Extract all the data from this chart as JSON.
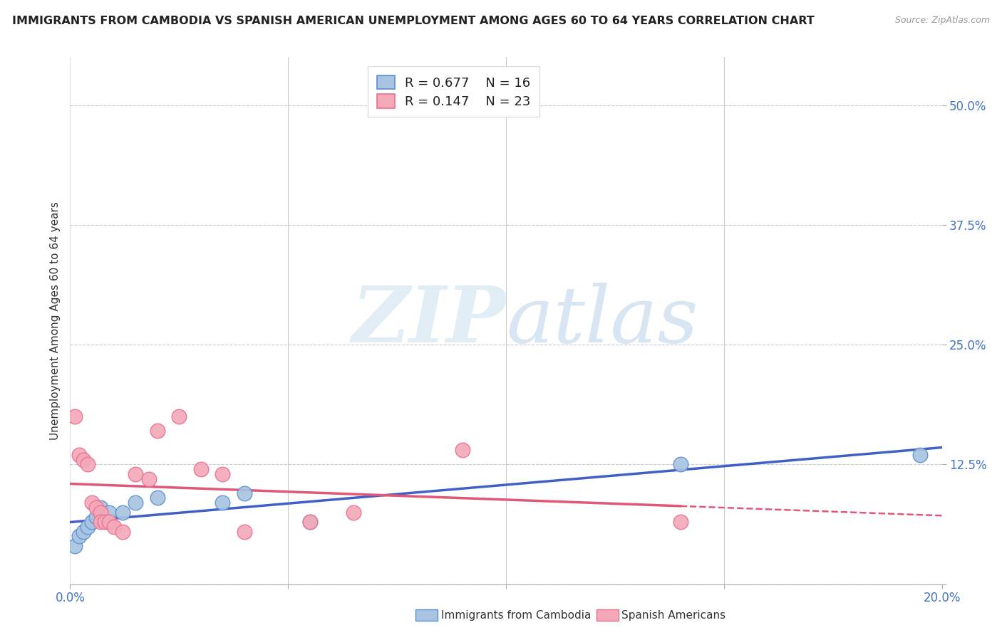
{
  "title": "IMMIGRANTS FROM CAMBODIA VS SPANISH AMERICAN UNEMPLOYMENT AMONG AGES 60 TO 64 YEARS CORRELATION CHART",
  "source": "Source: ZipAtlas.com",
  "ylabel": "Unemployment Among Ages 60 to 64 years",
  "xlim": [
    0.0,
    0.2
  ],
  "ylim": [
    0.0,
    0.55
  ],
  "yticks": [
    0.0,
    0.125,
    0.25,
    0.375,
    0.5
  ],
  "ytick_labels": [
    "",
    "12.5%",
    "25.0%",
    "37.5%",
    "50.0%"
  ],
  "xticks": [
    0.0,
    0.05,
    0.1,
    0.15,
    0.2
  ],
  "xtick_labels": [
    "0.0%",
    "",
    "",
    "",
    "20.0%"
  ],
  "blue_R": 0.677,
  "blue_N": 16,
  "pink_R": 0.147,
  "pink_N": 23,
  "blue_fill_color": "#a8c4e0",
  "pink_fill_color": "#f4a8b8",
  "blue_edge_color": "#5b8ed6",
  "pink_edge_color": "#e87090",
  "blue_line_color": "#4060c8",
  "pink_line_color": "#e05878",
  "blue_scatter": [
    [
      0.001,
      0.04
    ],
    [
      0.002,
      0.05
    ],
    [
      0.003,
      0.055
    ],
    [
      0.004,
      0.06
    ],
    [
      0.005,
      0.065
    ],
    [
      0.006,
      0.07
    ],
    [
      0.007,
      0.08
    ],
    [
      0.009,
      0.075
    ],
    [
      0.012,
      0.075
    ],
    [
      0.015,
      0.085
    ],
    [
      0.02,
      0.09
    ],
    [
      0.035,
      0.085
    ],
    [
      0.04,
      0.095
    ],
    [
      0.055,
      0.065
    ],
    [
      0.14,
      0.125
    ],
    [
      0.195,
      0.135
    ]
  ],
  "pink_scatter": [
    [
      0.001,
      0.175
    ],
    [
      0.002,
      0.135
    ],
    [
      0.003,
      0.13
    ],
    [
      0.004,
      0.125
    ],
    [
      0.005,
      0.085
    ],
    [
      0.006,
      0.08
    ],
    [
      0.007,
      0.075
    ],
    [
      0.007,
      0.065
    ],
    [
      0.008,
      0.065
    ],
    [
      0.009,
      0.065
    ],
    [
      0.01,
      0.06
    ],
    [
      0.012,
      0.055
    ],
    [
      0.015,
      0.115
    ],
    [
      0.018,
      0.11
    ],
    [
      0.02,
      0.16
    ],
    [
      0.025,
      0.175
    ],
    [
      0.03,
      0.12
    ],
    [
      0.035,
      0.115
    ],
    [
      0.04,
      0.055
    ],
    [
      0.055,
      0.065
    ],
    [
      0.065,
      0.075
    ],
    [
      0.09,
      0.14
    ],
    [
      0.14,
      0.065
    ]
  ],
  "watermark_zip": "ZIP",
  "watermark_atlas": "atlas",
  "background_color": "#ffffff",
  "grid_color": "#cccccc",
  "axis_label_color": "#4472c4",
  "title_color": "#222222",
  "title_fontsize": 11.5,
  "axis_label_fontsize": 11,
  "tick_fontsize": 12,
  "legend_fontsize": 13
}
